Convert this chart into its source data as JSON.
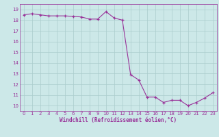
{
  "hours": [
    0,
    1,
    2,
    3,
    4,
    5,
    6,
    7,
    8,
    9,
    10,
    11,
    12,
    13,
    14,
    15,
    16,
    17,
    18,
    19,
    20,
    21,
    22,
    23
  ],
  "values": [
    18.5,
    18.6,
    18.5,
    18.4,
    18.4,
    18.4,
    18.35,
    18.3,
    18.1,
    18.1,
    18.8,
    18.2,
    18.0,
    12.9,
    12.4,
    10.8,
    10.8,
    10.3,
    10.5,
    10.5,
    10.0,
    10.3,
    10.7,
    11.2
  ],
  "line_color": "#993399",
  "marker": "+",
  "bg_color": "#cce8e8",
  "grid_color": "#aacccc",
  "xlabel": "Windchill (Refroidissement éolien,°C)",
  "ylim": [
    9.5,
    19.5
  ],
  "xlim": [
    -0.5,
    23.5
  ],
  "yticks": [
    10,
    11,
    12,
    13,
    14,
    15,
    16,
    17,
    18,
    19
  ],
  "xticks": [
    0,
    1,
    2,
    3,
    4,
    5,
    6,
    7,
    8,
    9,
    10,
    11,
    12,
    13,
    14,
    15,
    16,
    17,
    18,
    19,
    20,
    21,
    22,
    23
  ],
  "line_color_hex": "#993399",
  "tick_label_color": "#993399",
  "xlabel_color": "#993399",
  "axis_color": "#993399"
}
